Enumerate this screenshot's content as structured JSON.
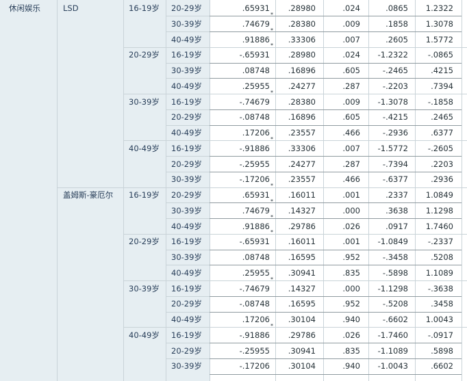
{
  "category": "休闲娱乐",
  "methods": [
    {
      "name": "LSD",
      "groups": [
        {
          "i": "16-19岁",
          "rows": [
            {
              "j": "20-29岁",
              "diff": ".65931",
              "sig_mark": "*",
              "se": ".28980",
              "p": ".024",
              "lo": ".0865",
              "hi": "1.2322"
            },
            {
              "j": "30-39岁",
              "diff": ".74679",
              "sig_mark": "*",
              "se": ".28380",
              "p": ".009",
              "lo": ".1858",
              "hi": "1.3078"
            },
            {
              "j": "40-49岁",
              "diff": ".91886",
              "sig_mark": "*",
              "se": ".33306",
              "p": ".007",
              "lo": ".2605",
              "hi": "1.5772"
            }
          ]
        },
        {
          "i": "20-29岁",
          "rows": [
            {
              "j": "16-19岁",
              "diff": "-.65931",
              "sig_mark": "*",
              "se": ".28980",
              "p": ".024",
              "lo": "-1.2322",
              "hi": "-.0865"
            },
            {
              "j": "30-39岁",
              "diff": ".08748",
              "sig_mark": "",
              "se": ".16896",
              "p": ".605",
              "lo": "-.2465",
              "hi": ".4215"
            },
            {
              "j": "40-49岁",
              "diff": ".25955",
              "sig_mark": "",
              "se": ".24277",
              "p": ".287",
              "lo": "-.2203",
              "hi": ".7394"
            }
          ]
        },
        {
          "i": "30-39岁",
          "rows": [
            {
              "j": "16-19岁",
              "diff": "-.74679",
              "sig_mark": "*",
              "se": ".28380",
              "p": ".009",
              "lo": "-1.3078",
              "hi": "-.1858"
            },
            {
              "j": "20-29岁",
              "diff": "-.08748",
              "sig_mark": "",
              "se": ".16896",
              "p": ".605",
              "lo": "-.4215",
              "hi": ".2465"
            },
            {
              "j": "40-49岁",
              "diff": ".17206",
              "sig_mark": "",
              "se": ".23557",
              "p": ".466",
              "lo": "-.2936",
              "hi": ".6377"
            }
          ]
        },
        {
          "i": "40-49岁",
          "rows": [
            {
              "j": "16-19岁",
              "diff": "-.91886",
              "sig_mark": "*",
              "se": ".33306",
              "p": ".007",
              "lo": "-1.5772",
              "hi": "-.2605"
            },
            {
              "j": "20-29岁",
              "diff": "-.25955",
              "sig_mark": "",
              "se": ".24277",
              "p": ".287",
              "lo": "-.7394",
              "hi": ".2203"
            },
            {
              "j": "30-39岁",
              "diff": "-.17206",
              "sig_mark": "",
              "se": ".23557",
              "p": ".466",
              "lo": "-.6377",
              "hi": ".2936"
            }
          ]
        }
      ]
    },
    {
      "name": "盖姆斯-豪厄尔",
      "groups": [
        {
          "i": "16-19岁",
          "rows": [
            {
              "j": "20-29岁",
              "diff": ".65931",
              "sig_mark": "*",
              "se": ".16011",
              "p": ".001",
              "lo": ".2337",
              "hi": "1.0849"
            },
            {
              "j": "30-39岁",
              "diff": ".74679",
              "sig_mark": "*",
              "se": ".14327",
              "p": ".000",
              "lo": ".3638",
              "hi": "1.1298"
            },
            {
              "j": "40-49岁",
              "diff": ".91886",
              "sig_mark": "*",
              "se": ".29786",
              "p": ".026",
              "lo": ".0917",
              "hi": "1.7460"
            }
          ]
        },
        {
          "i": "20-29岁",
          "rows": [
            {
              "j": "16-19岁",
              "diff": "-.65931",
              "sig_mark": "*",
              "se": ".16011",
              "p": ".001",
              "lo": "-1.0849",
              "hi": "-.2337"
            },
            {
              "j": "30-39岁",
              "diff": ".08748",
              "sig_mark": "",
              "se": ".16595",
              "p": ".952",
              "lo": "-.3458",
              "hi": ".5208"
            },
            {
              "j": "40-49岁",
              "diff": ".25955",
              "sig_mark": "",
              "se": ".30941",
              "p": ".835",
              "lo": "-.5898",
              "hi": "1.1089"
            }
          ]
        },
        {
          "i": "30-39岁",
          "rows": [
            {
              "j": "16-19岁",
              "diff": "-.74679",
              "sig_mark": "*",
              "se": ".14327",
              "p": ".000",
              "lo": "-1.1298",
              "hi": "-.3638"
            },
            {
              "j": "20-29岁",
              "diff": "-.08748",
              "sig_mark": "",
              "se": ".16595",
              "p": ".952",
              "lo": "-.5208",
              "hi": ".3458"
            },
            {
              "j": "40-49岁",
              "diff": ".17206",
              "sig_mark": "",
              "se": ".30104",
              "p": ".940",
              "lo": "-.6602",
              "hi": "1.0043"
            }
          ]
        },
        {
          "i": "40-49岁",
          "rows": [
            {
              "j": "16-19岁",
              "diff": "-.91886",
              "sig_mark": "*",
              "se": ".29786",
              "p": ".026",
              "lo": "-1.7460",
              "hi": "-.0917"
            },
            {
              "j": "20-29岁",
              "diff": "-.25955",
              "sig_mark": "",
              "se": ".30941",
              "p": ".835",
              "lo": "-1.1089",
              "hi": ".5898"
            },
            {
              "j": "30-39岁",
              "diff": "-.17206",
              "sig_mark": "",
              "se": ".30104",
              "p": ".940",
              "lo": "-1.0043",
              "hi": ".6602"
            }
          ]
        }
      ]
    }
  ],
  "colors": {
    "label_bg": "#e6eef2",
    "label_text": "#283e59",
    "data_text": "#263238"
  }
}
